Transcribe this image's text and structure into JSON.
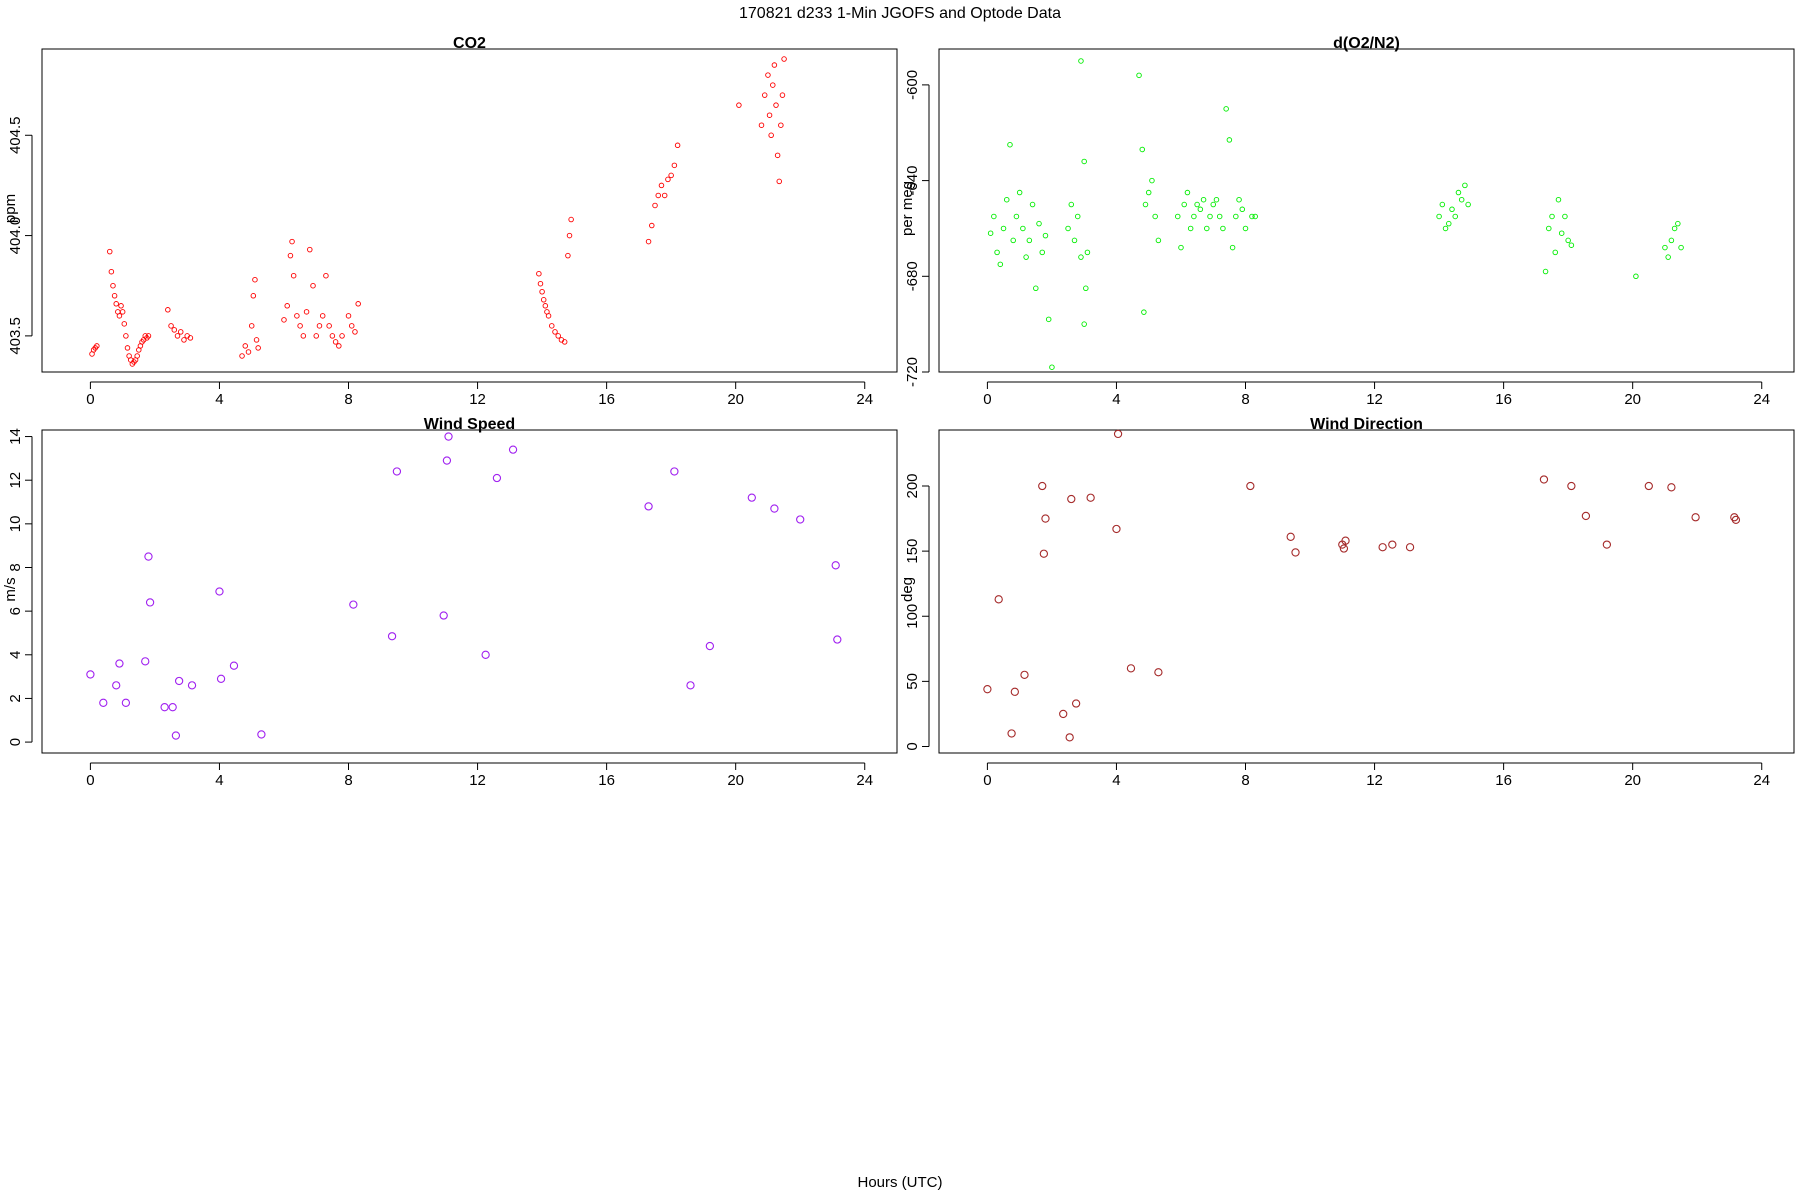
{
  "figure": {
    "title": "170821   d233   1-Min  JGOFS and Optode Data",
    "xlabel": "Hours (UTC)"
  },
  "chart_data": [
    {
      "id": "co2",
      "type": "scatter",
      "title": "CO2",
      "xlabel": "",
      "ylabel": "ppm",
      "xlim": [
        -1.5,
        25
      ],
      "ylim": [
        403.32,
        404.93
      ],
      "xticks": [
        0,
        4,
        8,
        12,
        16,
        20,
        24
      ],
      "yticks": [
        403.5,
        404.0,
        404.5
      ],
      "ytick_labels": [
        "403.5",
        "404.0",
        "404.5"
      ],
      "color": "#ff0000",
      "marker": "small-open-circle",
      "series": [
        {
          "x": [
            0.05,
            0.1,
            0.15,
            0.2
          ],
          "y": [
            403.41,
            403.43,
            403.44,
            403.45
          ]
        },
        {
          "x": [
            0.6,
            0.65,
            0.7,
            0.75,
            0.8,
            0.85,
            0.9,
            0.95,
            1.0,
            1.05,
            1.1,
            1.15,
            1.2,
            1.25,
            1.3,
            1.35,
            1.4,
            1.45,
            1.5,
            1.55,
            1.6,
            1.65,
            1.7,
            1.75,
            1.8
          ],
          "y": [
            403.92,
            403.82,
            403.75,
            403.7,
            403.66,
            403.62,
            403.6,
            403.65,
            403.62,
            403.56,
            403.5,
            403.44,
            403.4,
            403.38,
            403.36,
            403.37,
            403.38,
            403.4,
            403.43,
            403.45,
            403.47,
            403.48,
            403.5,
            403.49,
            403.5
          ]
        },
        {
          "x": [
            2.4,
            2.5,
            2.6,
            2.7,
            2.8,
            2.9,
            3.0,
            3.1
          ],
          "y": [
            403.63,
            403.55,
            403.53,
            403.5,
            403.52,
            403.48,
            403.5,
            403.49
          ]
        },
        {
          "x": [
            4.7,
            4.8,
            4.9,
            5.0,
            5.05,
            5.1,
            5.15,
            5.2
          ],
          "y": [
            403.4,
            403.45,
            403.42,
            403.55,
            403.7,
            403.78,
            403.48,
            403.44
          ]
        },
        {
          "x": [
            6.0,
            6.1,
            6.2,
            6.25,
            6.3,
            6.4,
            6.5,
            6.6,
            6.7,
            6.8,
            6.9,
            7.0,
            7.1,
            7.2,
            7.3,
            7.4,
            7.5,
            7.6,
            7.7,
            7.8
          ],
          "y": [
            403.58,
            403.65,
            403.9,
            403.97,
            403.8,
            403.6,
            403.55,
            403.5,
            403.62,
            403.93,
            403.75,
            403.5,
            403.55,
            403.6,
            403.8,
            403.55,
            403.5,
            403.47,
            403.45,
            403.5
          ]
        },
        {
          "x": [
            8.0,
            8.1,
            8.2,
            8.3
          ],
          "y": [
            403.6,
            403.55,
            403.52,
            403.66
          ]
        },
        {
          "x": [
            13.9,
            13.95,
            14.0,
            14.05,
            14.1,
            14.15,
            14.2,
            14.3,
            14.4,
            14.5,
            14.6,
            14.7,
            14.8,
            14.85,
            14.9
          ],
          "y": [
            403.81,
            403.76,
            403.72,
            403.68,
            403.65,
            403.62,
            403.6,
            403.55,
            403.52,
            403.5,
            403.48,
            403.47,
            403.9,
            404.0,
            404.08
          ]
        },
        {
          "x": [
            17.3,
            17.4,
            17.5,
            17.6,
            17.7,
            17.8,
            17.9,
            18.0,
            18.1,
            18.2
          ],
          "y": [
            403.97,
            404.05,
            404.15,
            404.2,
            404.25,
            404.2,
            404.28,
            404.3,
            404.35,
            404.45
          ]
        },
        {
          "x": [
            20.1,
            20.8,
            20.9,
            21.0,
            21.05,
            21.1,
            21.15,
            21.2,
            21.25,
            21.3,
            21.35,
            21.4,
            21.45,
            21.5
          ],
          "y": [
            404.65,
            404.55,
            404.7,
            404.8,
            404.6,
            404.5,
            404.75,
            404.85,
            404.65,
            404.4,
            404.27,
            404.55,
            404.7,
            404.88
          ]
        }
      ]
    },
    {
      "id": "o2n2",
      "type": "scatter",
      "title": "d(O2/N2)",
      "xlabel": "",
      "ylabel": "per meg",
      "xlim": [
        -1.5,
        25
      ],
      "ylim": [
        -720,
        -585
      ],
      "xticks": [
        0,
        4,
        8,
        12,
        16,
        20,
        24
      ],
      "yticks": [
        -600,
        -640,
        -680,
        -720
      ],
      "ytick_labels": [
        "-600",
        "-640",
        "-680",
        "-720"
      ],
      "color": "#00ee00",
      "marker": "small-open-circle",
      "series": [
        {
          "x": [
            0.1,
            0.2,
            0.3,
            0.4,
            0.5,
            0.6,
            0.7,
            0.8,
            0.9,
            1.0,
            1.1,
            1.2,
            1.3,
            1.4,
            1.5,
            1.6,
            1.7,
            1.8,
            1.9,
            2.0
          ],
          "y": [
            -662,
            -655,
            -670,
            -675,
            -660,
            -648,
            -625,
            -665,
            -655,
            -645,
            -660,
            -672,
            -665,
            -650,
            -685,
            -658,
            -670,
            -663,
            -698,
            -718
          ]
        },
        {
          "x": [
            2.5,
            2.6,
            2.7,
            2.8,
            2.9,
            3.0,
            3.05,
            3.1
          ],
          "y": [
            -660,
            -650,
            -665,
            -655,
            -672,
            -700,
            -685,
            -670
          ]
        },
        {
          "x": [
            2.9,
            3.0
          ],
          "y": [
            -590,
            -632
          ]
        },
        {
          "x": [
            4.7,
            4.8,
            4.85,
            4.9,
            5.0,
            5.1,
            5.2,
            5.3
          ],
          "y": [
            -596,
            -627,
            -695,
            -650,
            -645,
            -640,
            -655,
            -665
          ]
        },
        {
          "x": [
            5.9,
            6.0,
            6.1,
            6.2,
            6.3,
            6.4,
            6.5,
            6.6,
            6.7,
            6.8,
            6.9,
            7.0,
            7.1,
            7.2,
            7.3,
            7.4,
            7.5,
            7.6,
            7.7,
            7.8,
            7.9,
            8.0,
            8.2,
            8.3
          ],
          "y": [
            -655,
            -668,
            -650,
            -645,
            -660,
            -655,
            -650,
            -652,
            -648,
            -660,
            -655,
            -650,
            -648,
            -655,
            -660,
            -610,
            -623,
            -668,
            -655,
            -648,
            -652,
            -660,
            -655,
            -655
          ]
        },
        {
          "x": [
            14.0,
            14.1,
            14.2,
            14.3,
            14.4,
            14.5,
            14.6,
            14.7,
            14.8,
            14.9
          ],
          "y": [
            -655,
            -650,
            -660,
            -658,
            -652,
            -655,
            -645,
            -648,
            -642,
            -650
          ]
        },
        {
          "x": [
            17.3,
            17.4,
            17.5,
            17.6,
            17.7,
            17.8,
            17.9,
            18.0,
            18.1
          ],
          "y": [
            -678,
            -660,
            -655,
            -670,
            -648,
            -662,
            -655,
            -665,
            -667
          ]
        },
        {
          "x": [
            20.1,
            21.0,
            21.1,
            21.2,
            21.3,
            21.4,
            21.5
          ],
          "y": [
            -680,
            -668,
            -672,
            -665,
            -660,
            -658,
            -668
          ]
        }
      ]
    },
    {
      "id": "wind-speed",
      "type": "scatter",
      "title": "Wind Speed",
      "xlabel": "",
      "ylabel": "m/s",
      "xlim": [
        -1.5,
        25
      ],
      "ylim": [
        -0.5,
        14.3
      ],
      "xticks": [
        0,
        4,
        8,
        12,
        16,
        20,
        24
      ],
      "yticks": [
        0,
        2,
        4,
        6,
        8,
        10,
        12,
        14
      ],
      "ytick_labels": [
        "0",
        "2",
        "4",
        "6",
        "8",
        "10",
        "12",
        "14"
      ],
      "color": "#a020f0",
      "marker": "open-circle",
      "series": [
        {
          "x": [
            0.0,
            0.4,
            0.8,
            0.9,
            1.1,
            1.7,
            1.8,
            1.85,
            2.3,
            2.55,
            2.65,
            2.75,
            3.15,
            4.0,
            4.05,
            4.45,
            5.3,
            8.15,
            9.35,
            9.5,
            10.95,
            11.05,
            11.1,
            12.25,
            12.6,
            13.1,
            17.3,
            18.1,
            18.6,
            19.2,
            20.5,
            21.2,
            22.0,
            23.1,
            23.15
          ],
          "y": [
            3.1,
            1.8,
            2.6,
            3.6,
            1.8,
            3.7,
            8.5,
            6.4,
            1.6,
            1.6,
            0.3,
            2.8,
            2.6,
            6.9,
            2.9,
            3.5,
            0.35,
            6.3,
            4.85,
            12.4,
            5.8,
            12.9,
            14.0,
            4.0,
            12.1,
            13.4,
            10.8,
            12.4,
            2.6,
            4.4,
            11.2,
            10.7,
            10.2,
            8.1,
            4.7
          ]
        }
      ]
    },
    {
      "id": "wind-direction",
      "type": "scatter",
      "title": "Wind Direction",
      "xlabel": "",
      "ylabel": "deg",
      "xlim": [
        -1.5,
        25
      ],
      "ylim": [
        -5,
        243
      ],
      "xticks": [
        0,
        4,
        8,
        12,
        16,
        20,
        24
      ],
      "yticks": [
        0,
        50,
        100,
        150,
        200
      ],
      "ytick_labels": [
        "0",
        "50",
        "100",
        "150",
        "200"
      ],
      "color": "#a52a2a",
      "marker": "open-circle",
      "series": [
        {
          "x": [
            0.0,
            0.35,
            0.75,
            0.85,
            1.15,
            1.7,
            1.75,
            1.8,
            2.35,
            2.55,
            2.6,
            2.75,
            3.2,
            4.0,
            4.05,
            4.45,
            5.3,
            8.15,
            9.4,
            9.55,
            11.0,
            11.05,
            11.1,
            12.25,
            12.55,
            13.1,
            17.25,
            18.1,
            18.55,
            19.2,
            20.5,
            21.2,
            21.95,
            23.15,
            23.2
          ],
          "y": [
            44,
            113,
            10,
            42,
            55,
            200,
            148,
            175,
            25,
            7,
            190,
            33,
            191,
            167,
            240,
            60,
            57,
            200,
            161,
            149,
            155,
            152,
            158,
            153,
            155,
            153,
            205,
            200,
            177,
            155,
            200,
            199,
            176,
            176,
            174
          ]
        }
      ]
    }
  ]
}
